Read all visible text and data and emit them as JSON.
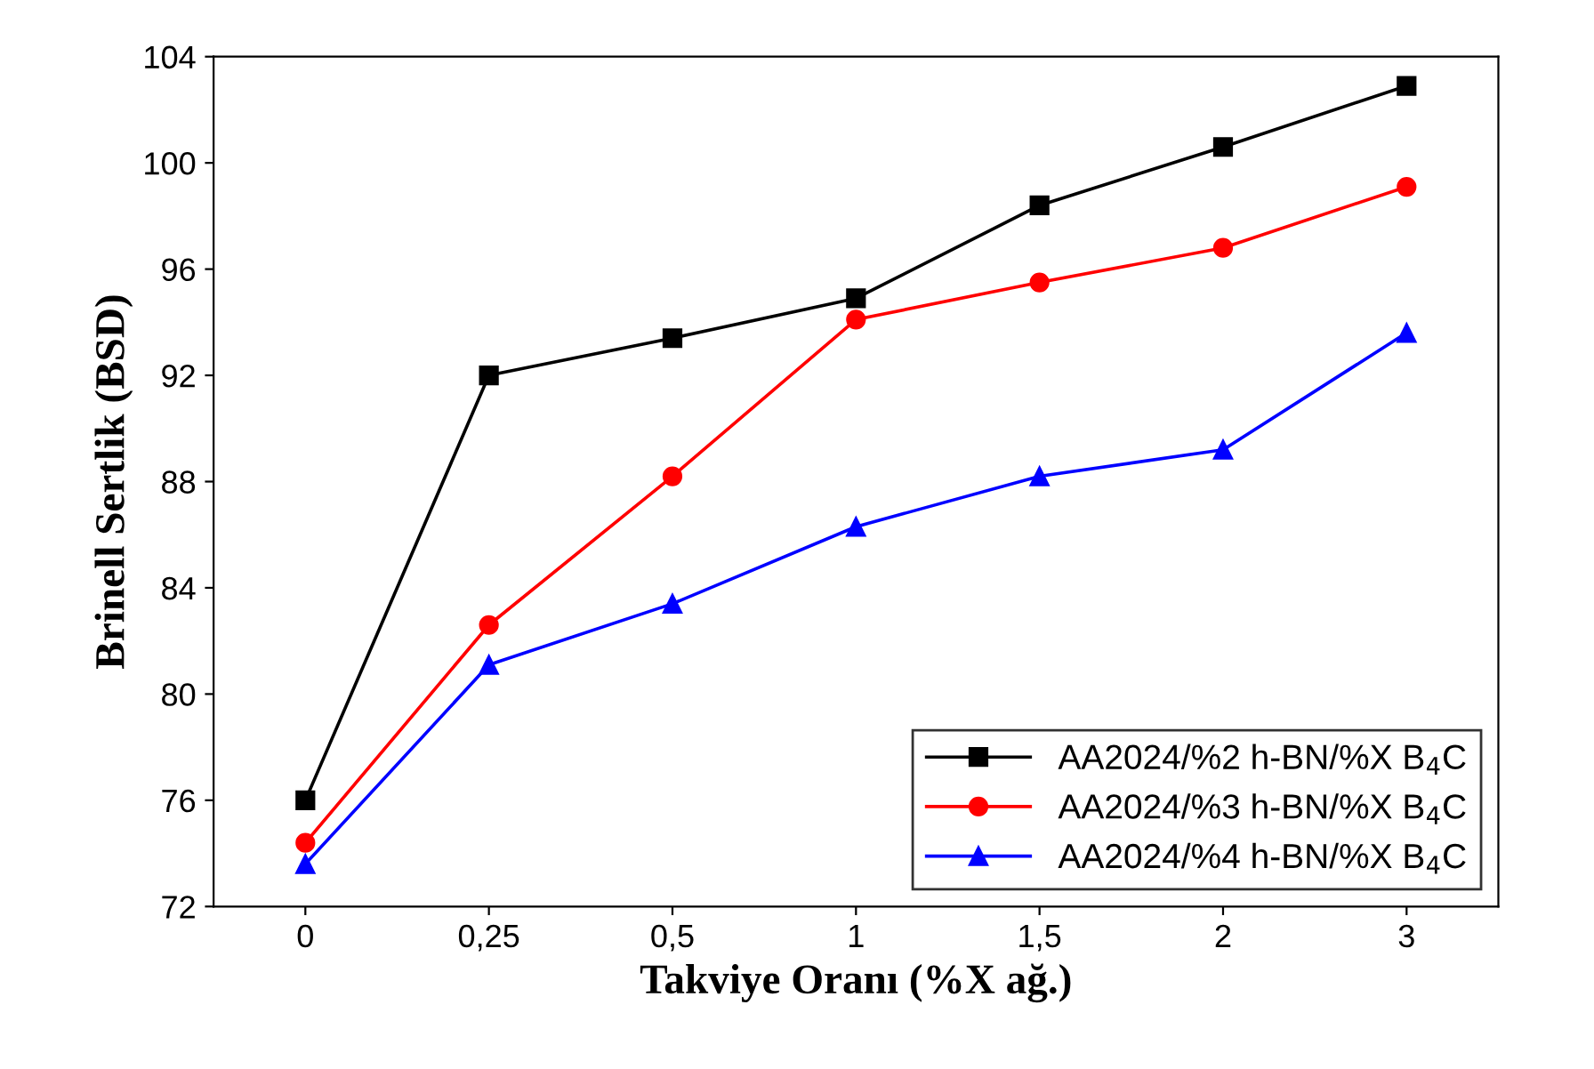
{
  "chart_data": {
    "type": "line",
    "xlabel": "Takviye Oranı (%X ağ.)",
    "ylabel": "Brinell Sertlik (BSD)",
    "categories": [
      "0",
      "0,25",
      "0,5",
      "1",
      "1,5",
      "2",
      "3"
    ],
    "series": [
      {
        "name": "AA2024/%2 h-BN/%X B$_{4}$C",
        "color": "#000000",
        "marker": "square",
        "values": [
          76.0,
          92.0,
          93.4,
          94.9,
          98.4,
          100.6,
          102.9
        ]
      },
      {
        "name": "AA2024/%3 h-BN/%X B$_{4}$C",
        "color": "#ff0000",
        "marker": "circle",
        "values": [
          74.4,
          82.6,
          88.2,
          94.1,
          95.5,
          96.8,
          99.1
        ]
      },
      {
        "name": "AA2024/%4 h-BN/%X B$_{4}$C",
        "color": "#0000ff",
        "marker": "triangle",
        "values": [
          73.6,
          81.1,
          83.4,
          86.3,
          88.2,
          89.2,
          93.6
        ]
      }
    ],
    "ylim": [
      72,
      104
    ],
    "yticks": [
      72,
      76,
      80,
      84,
      88,
      92,
      96,
      100,
      104
    ],
    "grid": false,
    "legend": "bottom right",
    "line_style": "solid"
  }
}
